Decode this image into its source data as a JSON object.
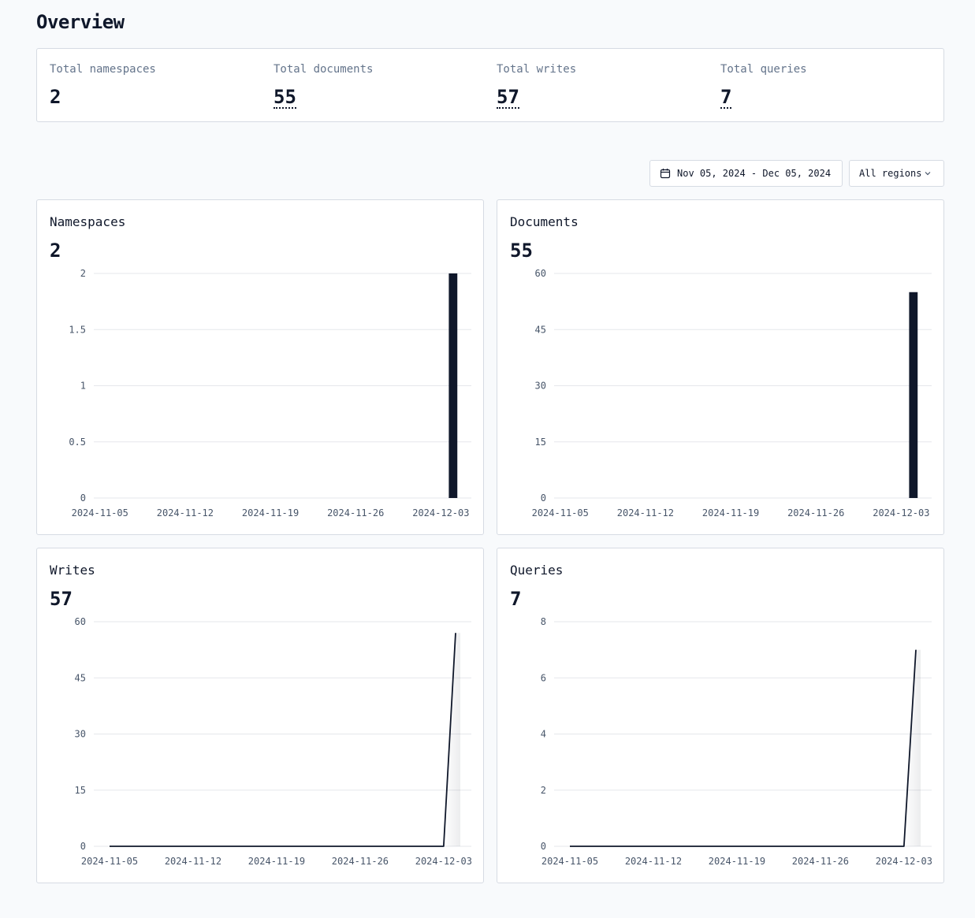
{
  "page": {
    "title": "Overview"
  },
  "stats": [
    {
      "label": "Total namespaces",
      "value": "2",
      "dotted": false
    },
    {
      "label": "Total documents",
      "value": "55",
      "dotted": true
    },
    {
      "label": "Total writes",
      "value": "57",
      "dotted": true
    },
    {
      "label": "Total queries",
      "value": "7",
      "dotted": true
    }
  ],
  "toolbar": {
    "date_range": "Nov 05, 2024 - Dec 05, 2024",
    "date_icon": "calendar-icon",
    "region": "All regions",
    "region_icon": "chevron-down-icon"
  },
  "colors": {
    "mark": "#0f172a",
    "grid": "#e5e7eb",
    "axis_text": "#475569"
  },
  "charts": [
    {
      "title": "Namespaces",
      "value": "2"
    },
    {
      "title": "Documents",
      "value": "55"
    },
    {
      "title": "Writes",
      "value": "57"
    },
    {
      "title": "Queries",
      "value": "7"
    }
  ],
  "chart_data": [
    {
      "type": "bar",
      "title": "Namespaces",
      "x": [
        "2024-11-05",
        "2024-11-06",
        "2024-11-07",
        "2024-11-08",
        "2024-11-09",
        "2024-11-10",
        "2024-11-11",
        "2024-11-12",
        "2024-11-13",
        "2024-11-14",
        "2024-11-15",
        "2024-11-16",
        "2024-11-17",
        "2024-11-18",
        "2024-11-19",
        "2024-11-20",
        "2024-11-21",
        "2024-11-22",
        "2024-11-23",
        "2024-11-24",
        "2024-11-25",
        "2024-11-26",
        "2024-11-27",
        "2024-11-28",
        "2024-11-29",
        "2024-11-30",
        "2024-12-01",
        "2024-12-02",
        "2024-12-03",
        "2024-12-04",
        "2024-12-05"
      ],
      "values": [
        0,
        0,
        0,
        0,
        0,
        0,
        0,
        0,
        0,
        0,
        0,
        0,
        0,
        0,
        0,
        0,
        0,
        0,
        0,
        0,
        0,
        0,
        0,
        0,
        0,
        0,
        0,
        0,
        0,
        2,
        0
      ],
      "xticks": [
        "2024-11-05",
        "2024-11-12",
        "2024-11-19",
        "2024-11-26",
        "2024-12-03"
      ],
      "yticks": [
        "0",
        "0.5",
        "1",
        "1.5",
        "2"
      ],
      "ylim": [
        0,
        2
      ],
      "grid": true
    },
    {
      "type": "bar",
      "title": "Documents",
      "x": [
        "2024-11-05",
        "2024-11-06",
        "2024-11-07",
        "2024-11-08",
        "2024-11-09",
        "2024-11-10",
        "2024-11-11",
        "2024-11-12",
        "2024-11-13",
        "2024-11-14",
        "2024-11-15",
        "2024-11-16",
        "2024-11-17",
        "2024-11-18",
        "2024-11-19",
        "2024-11-20",
        "2024-11-21",
        "2024-11-22",
        "2024-11-23",
        "2024-11-24",
        "2024-11-25",
        "2024-11-26",
        "2024-11-27",
        "2024-11-28",
        "2024-11-29",
        "2024-11-30",
        "2024-12-01",
        "2024-12-02",
        "2024-12-03",
        "2024-12-04",
        "2024-12-05"
      ],
      "values": [
        0,
        0,
        0,
        0,
        0,
        0,
        0,
        0,
        0,
        0,
        0,
        0,
        0,
        0,
        0,
        0,
        0,
        0,
        0,
        0,
        0,
        0,
        0,
        0,
        0,
        0,
        0,
        0,
        0,
        55,
        0
      ],
      "xticks": [
        "2024-11-05",
        "2024-11-12",
        "2024-11-19",
        "2024-11-26",
        "2024-12-03"
      ],
      "yticks": [
        "0",
        "15",
        "30",
        "45",
        "60"
      ],
      "ylim": [
        0,
        60
      ],
      "grid": true
    },
    {
      "type": "line",
      "title": "Writes",
      "x": [
        "2024-11-05",
        "2024-11-06",
        "2024-11-07",
        "2024-11-08",
        "2024-11-09",
        "2024-11-10",
        "2024-11-11",
        "2024-11-12",
        "2024-11-13",
        "2024-11-14",
        "2024-11-15",
        "2024-11-16",
        "2024-11-17",
        "2024-11-18",
        "2024-11-19",
        "2024-11-20",
        "2024-11-21",
        "2024-11-22",
        "2024-11-23",
        "2024-11-24",
        "2024-11-25",
        "2024-11-26",
        "2024-11-27",
        "2024-11-28",
        "2024-11-29",
        "2024-11-30",
        "2024-12-01",
        "2024-12-02",
        "2024-12-03",
        "2024-12-04"
      ],
      "values": [
        0,
        0,
        0,
        0,
        0,
        0,
        0,
        0,
        0,
        0,
        0,
        0,
        0,
        0,
        0,
        0,
        0,
        0,
        0,
        0,
        0,
        0,
        0,
        0,
        0,
        0,
        0,
        0,
        0,
        57
      ],
      "xticks": [
        "2024-11-05",
        "2024-11-12",
        "2024-11-19",
        "2024-11-26",
        "2024-12-03"
      ],
      "yticks": [
        "0",
        "15",
        "30",
        "45",
        "60"
      ],
      "ylim": [
        0,
        60
      ],
      "grid": true
    },
    {
      "type": "line",
      "title": "Queries",
      "x": [
        "2024-11-05",
        "2024-11-06",
        "2024-11-07",
        "2024-11-08",
        "2024-11-09",
        "2024-11-10",
        "2024-11-11",
        "2024-11-12",
        "2024-11-13",
        "2024-11-14",
        "2024-11-15",
        "2024-11-16",
        "2024-11-17",
        "2024-11-18",
        "2024-11-19",
        "2024-11-20",
        "2024-11-21",
        "2024-11-22",
        "2024-11-23",
        "2024-11-24",
        "2024-11-25",
        "2024-11-26",
        "2024-11-27",
        "2024-11-28",
        "2024-11-29",
        "2024-11-30",
        "2024-12-01",
        "2024-12-02",
        "2024-12-03",
        "2024-12-04"
      ],
      "values": [
        0,
        0,
        0,
        0,
        0,
        0,
        0,
        0,
        0,
        0,
        0,
        0,
        0,
        0,
        0,
        0,
        0,
        0,
        0,
        0,
        0,
        0,
        0,
        0,
        0,
        0,
        0,
        0,
        0,
        7
      ],
      "xticks": [
        "2024-11-05",
        "2024-11-12",
        "2024-11-19",
        "2024-11-26",
        "2024-12-03"
      ],
      "yticks": [
        "0",
        "2",
        "4",
        "6",
        "8"
      ],
      "ylim": [
        0,
        8
      ],
      "grid": true
    }
  ]
}
